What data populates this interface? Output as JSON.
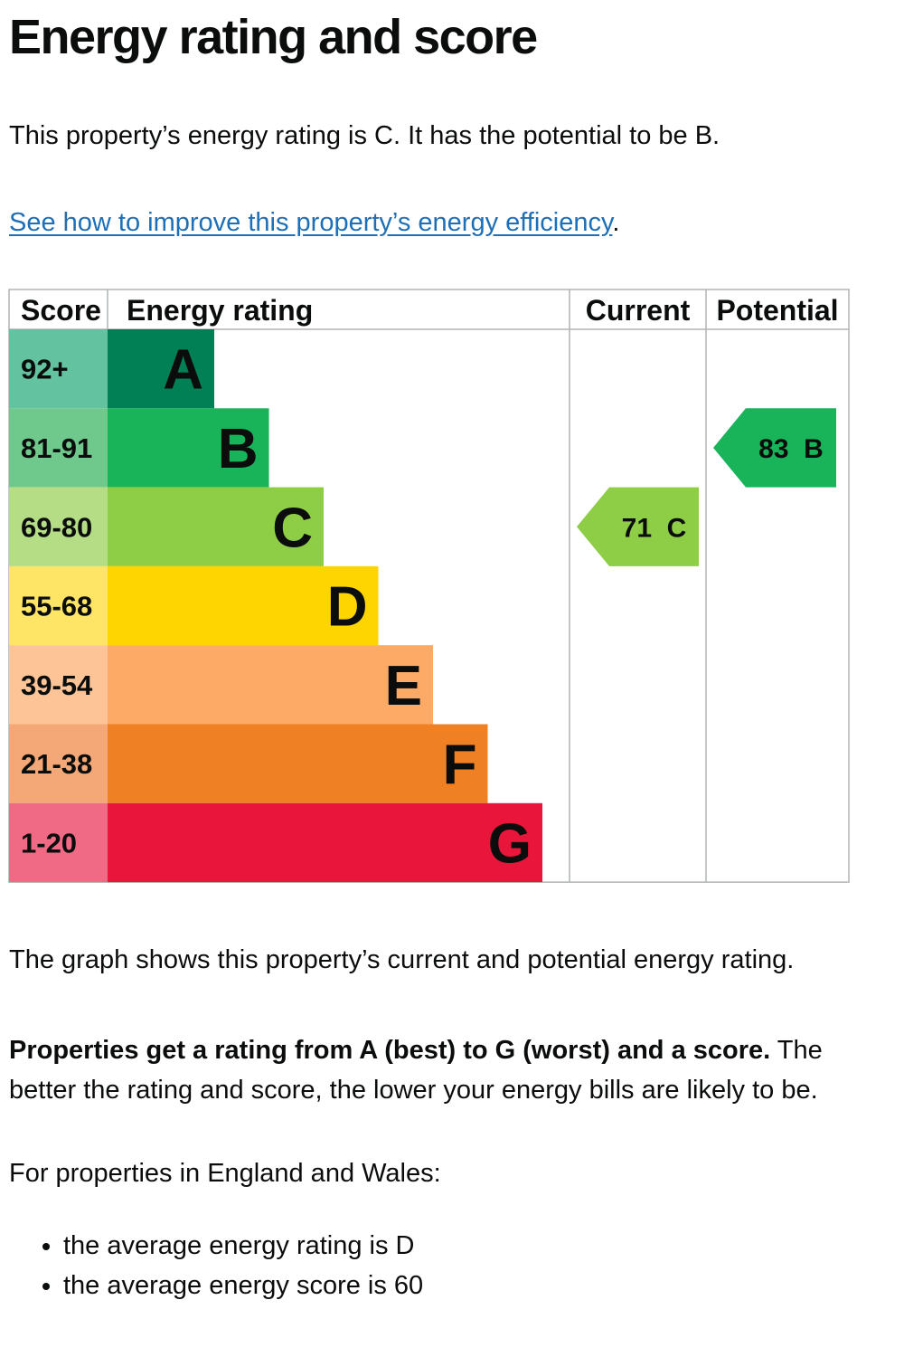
{
  "heading": "Energy rating and score",
  "intro": "This property’s energy rating is C. It has the potential to be B.",
  "improve_link": "See how to improve this property’s energy efficiency",
  "improve_suffix": ".",
  "graph_note": "The graph shows this property’s current and potential energy rating.",
  "rating_info_bold": "Properties get a rating from A (best) to G (worst) and a score.",
  "rating_info_rest": " The better the rating and score, the lower your energy bills are likely to be.",
  "regions_intro": "For properties in England and Wales:",
  "averages": [
    "the average energy rating is D",
    "the average energy score is 60"
  ],
  "chart_data": {
    "type": "bar",
    "headers": {
      "score": "Score",
      "rating": "Energy rating",
      "current": "Current",
      "potential": "Potential"
    },
    "bands": [
      {
        "letter": "A",
        "score_range": "92+",
        "color": "#008054",
        "score_color": "#63c2a0"
      },
      {
        "letter": "B",
        "score_range": "81-91",
        "color": "#19b459",
        "score_color": "#70c98c"
      },
      {
        "letter": "C",
        "score_range": "69-80",
        "color": "#8dce46",
        "score_color": "#b5dd85"
      },
      {
        "letter": "D",
        "score_range": "55-68",
        "color": "#ffd500",
        "score_color": "#ffe566"
      },
      {
        "letter": "E",
        "score_range": "39-54",
        "color": "#fcaa65",
        "score_color": "#fdc597"
      },
      {
        "letter": "F",
        "score_range": "21-38",
        "color": "#ef8023",
        "score_color": "#f4a877"
      },
      {
        "letter": "G",
        "score_range": "1-20",
        "color": "#e9153b",
        "score_color": "#f06a85"
      }
    ],
    "current": {
      "score": 71,
      "letter": "C",
      "label": "71  C",
      "color": "#8dce46"
    },
    "potential": {
      "score": 83,
      "letter": "B",
      "label": "83  B",
      "color": "#19b459"
    }
  }
}
